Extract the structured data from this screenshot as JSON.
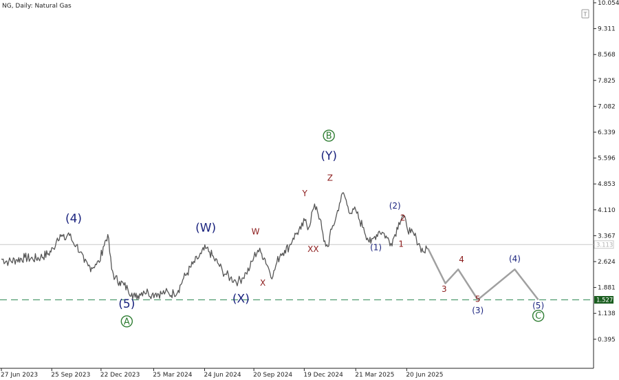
{
  "chart_data": {
    "type": "line",
    "title": "NG, Daily:  Natural Gas",
    "ylim": [
      0.0,
      10.054
    ],
    "y_ticks": [
      "10.054",
      "9.311",
      "8.568",
      "7.825",
      "7.082",
      "6.339",
      "5.596",
      "4.853",
      "4.110",
      "3.367",
      "2.624",
      "1.881",
      "1.138",
      "0.395"
    ],
    "x_ticks": [
      "27 Jun 2023",
      "25 Sep 2023",
      "22 Dec 2023",
      "25 Mar 2024",
      "24 Jun 2024",
      "20 Sep 2024",
      "19 Dec 2024",
      "21 Mar 2025",
      "20 Jun 2025"
    ],
    "grid": false,
    "price_series": {
      "name": "NG",
      "x": [
        "2023-06-27",
        "2023-07-10",
        "2023-07-25",
        "2023-08-08",
        "2023-08-22",
        "2023-09-05",
        "2023-09-19",
        "2023-09-28",
        "2023-10-05",
        "2023-10-10",
        "2023-10-18",
        "2023-10-25",
        "2023-11-01",
        "2023-11-08",
        "2023-11-15",
        "2023-11-22",
        "2023-11-29",
        "2023-12-05",
        "2023-12-12",
        "2023-12-19",
        "2023-12-26",
        "2024-01-03",
        "2024-01-10",
        "2024-01-16",
        "2024-01-24",
        "2024-02-01",
        "2024-02-08",
        "2024-02-15",
        "2024-02-21",
        "2024-02-29",
        "2024-03-07",
        "2024-03-15",
        "2024-03-22",
        "2024-03-29",
        "2024-04-08",
        "2024-04-15",
        "2024-04-22",
        "2024-04-30",
        "2024-05-08",
        "2024-05-16",
        "2024-05-24",
        "2024-06-03",
        "2024-06-11",
        "2024-06-18",
        "2024-06-26",
        "2024-07-03",
        "2024-07-11",
        "2024-07-19",
        "2024-07-26",
        "2024-08-02",
        "2024-08-09",
        "2024-08-16",
        "2024-08-23",
        "2024-08-30",
        "2024-09-06",
        "2024-09-13",
        "2024-09-20",
        "2024-09-27",
        "2024-10-04",
        "2024-10-10",
        "2024-10-17",
        "2024-10-24",
        "2024-10-31",
        "2024-11-07",
        "2024-11-14",
        "2024-11-22",
        "2024-11-29",
        "2024-12-06",
        "2024-12-13",
        "2024-12-20",
        "2024-12-27",
        "2025-01-03",
        "2025-01-10",
        "2025-01-16",
        "2025-01-23",
        "2025-01-30",
        "2025-02-06",
        "2025-02-13",
        "2025-02-20",
        "2025-02-27",
        "2025-03-07",
        "2025-03-14",
        "2025-03-21",
        "2025-03-28",
        "2025-04-04",
        "2025-04-11",
        "2025-04-17",
        "2025-04-24",
        "2025-05-02",
        "2025-05-09",
        "2025-05-16",
        "2025-05-23",
        "2025-05-30",
        "2025-06-06",
        "2025-06-13",
        "2025-06-20",
        "2025-06-27",
        "2025-07-07",
        "2025-07-14",
        "2025-07-21",
        "2025-07-28"
      ],
      "values": [
        2.7,
        2.62,
        2.68,
        2.74,
        2.7,
        2.75,
        2.85,
        3.0,
        3.3,
        3.4,
        3.25,
        3.45,
        3.2,
        3.1,
        2.9,
        2.6,
        2.5,
        2.45,
        2.55,
        2.6,
        3.05,
        3.4,
        2.4,
        2.15,
        2.05,
        1.95,
        1.82,
        1.72,
        1.6,
        1.7,
        1.78,
        1.75,
        1.68,
        1.72,
        1.7,
        1.75,
        1.68,
        1.72,
        1.8,
        2.1,
        2.3,
        2.55,
        2.7,
        2.85,
        3.0,
        2.9,
        2.7,
        2.55,
        2.35,
        2.25,
        2.15,
        2.1,
        2.05,
        2.15,
        2.3,
        2.45,
        2.75,
        2.95,
        2.85,
        2.7,
        2.4,
        2.2,
        2.6,
        2.85,
        2.95,
        3.05,
        3.3,
        3.45,
        3.55,
        3.8,
        3.6,
        4.1,
        4.2,
        3.85,
        3.2,
        3.05,
        3.55,
        3.85,
        4.3,
        4.6,
        4.2,
        4.0,
        4.1,
        3.8,
        3.6,
        3.3,
        3.15,
        3.35,
        3.5,
        3.45,
        3.3,
        3.15,
        3.4,
        3.75,
        3.95,
        3.65,
        3.45,
        3.3,
        3.05,
        2.9,
        3.0
      ]
    },
    "projection_series": {
      "x": [
        "2025-07-28",
        "2025-08-28",
        "2025-09-20",
        "2025-10-25",
        "2025-12-30",
        "2026-02-10"
      ],
      "values": [
        3.0,
        2.0,
        2.4,
        1.53,
        2.4,
        1.53
      ]
    },
    "horizontal_lines": {
      "current_price": "3.113",
      "support_level": "1.527"
    },
    "colors": {
      "price_line": "#555555",
      "projection": "#a0a0a0",
      "support_dash": "#4e9a6e",
      "support_tag_bg": "#1b5e20",
      "navy": "#1a237e",
      "brown": "#8b1a1a",
      "green": "#2e7d32",
      "current_line": "#c8c8c8"
    },
    "annotations": [
      {
        "text": "(4)",
        "x": "2023-11-03",
        "y": 3.75,
        "color": "navy",
        "size": 17,
        "circle": false
      },
      {
        "text": "(5)",
        "x": "2024-02-06",
        "y": 1.3,
        "color": "navy",
        "size": 17,
        "circle": false
      },
      {
        "text": "A",
        "x": "2024-02-06",
        "y": 0.82,
        "color": "green",
        "size": 13,
        "circle": true
      },
      {
        "text": "(W)",
        "x": "2024-06-26",
        "y": 3.48,
        "color": "navy",
        "size": 17,
        "circle": false
      },
      {
        "text": "(X)",
        "x": "2024-08-28",
        "y": 1.45,
        "color": "navy",
        "size": 17,
        "circle": false
      },
      {
        "text": "W",
        "x": "2024-09-23",
        "y": 3.4,
        "color": "brown",
        "size": 12,
        "circle": false
      },
      {
        "text": "X",
        "x": "2024-10-06",
        "y": 1.93,
        "color": "brown",
        "size": 12,
        "circle": false
      },
      {
        "text": "Y",
        "x": "2024-12-20",
        "y": 4.5,
        "color": "brown",
        "size": 12,
        "circle": false
      },
      {
        "text": "XX",
        "x": "2025-01-04",
        "y": 2.9,
        "color": "brown",
        "size": 12,
        "circle": false
      },
      {
        "text": "B",
        "x": "2025-02-01",
        "y": 6.15,
        "color": "green",
        "size": 13,
        "circle": true
      },
      {
        "text": "(Y)",
        "x": "2025-02-01",
        "y": 5.55,
        "color": "navy",
        "size": 17,
        "circle": false
      },
      {
        "text": "Z",
        "x": "2025-02-03",
        "y": 4.95,
        "color": "brown",
        "size": 12,
        "circle": false
      },
      {
        "text": "(1)",
        "x": "2025-04-26",
        "y": 2.95,
        "color": "navy",
        "size": 12,
        "circle": false
      },
      {
        "text": "(2)",
        "x": "2025-05-30",
        "y": 4.15,
        "color": "navy",
        "size": 12,
        "circle": false
      },
      {
        "text": "1",
        "x": "2025-06-10",
        "y": 3.05,
        "color": "brown",
        "size": 12,
        "circle": false
      },
      {
        "text": "2",
        "x": "2025-06-13",
        "y": 3.8,
        "color": "brown",
        "size": 12,
        "circle": false
      },
      {
        "text": "3",
        "x": "2025-08-26",
        "y": 1.75,
        "color": "brown",
        "size": 12,
        "circle": false
      },
      {
        "text": "4",
        "x": "2025-09-26",
        "y": 2.6,
        "color": "brown",
        "size": 12,
        "circle": false
      },
      {
        "text": "5",
        "x": "2025-10-25",
        "y": 1.47,
        "color": "brown",
        "size": 12,
        "circle": false
      },
      {
        "text": "(3)",
        "x": "2025-10-25",
        "y": 1.14,
        "color": "navy",
        "size": 12,
        "circle": false
      },
      {
        "text": "(4)",
        "x": "2025-12-30",
        "y": 2.62,
        "color": "navy",
        "size": 12,
        "circle": false
      },
      {
        "text": "(5)",
        "x": "2026-02-10",
        "y": 1.28,
        "color": "navy",
        "size": 12,
        "circle": false
      },
      {
        "text": "C",
        "x": "2026-02-10",
        "y": 0.98,
        "color": "green",
        "size": 13,
        "circle": true
      }
    ]
  }
}
